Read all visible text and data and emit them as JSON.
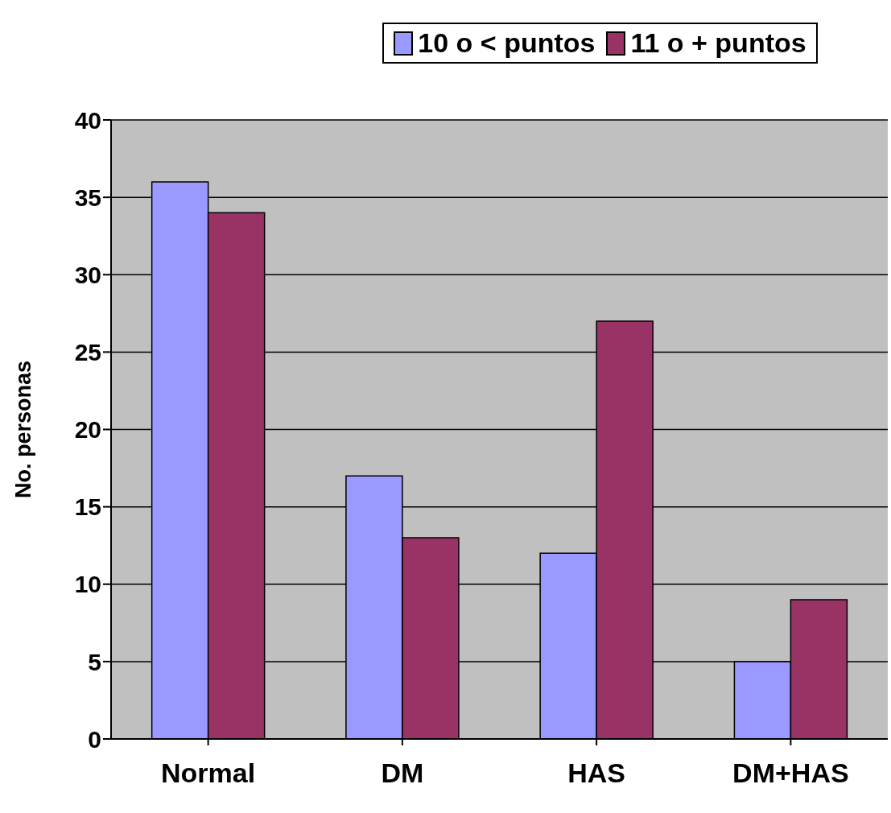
{
  "chart_data": {
    "type": "bar",
    "ylabel": "No. personas",
    "categories": [
      "Normal",
      "DM",
      "HAS",
      "DM+HAS"
    ],
    "series": [
      {
        "name": "10 o < puntos",
        "color": "#9999ff",
        "values": [
          36,
          17,
          12,
          5
        ]
      },
      {
        "name": "11 o + puntos",
        "color": "#993366",
        "values": [
          34,
          13,
          27,
          9
        ]
      }
    ],
    "ylim": [
      0,
      40
    ],
    "yticks": [
      0,
      5,
      10,
      15,
      20,
      25,
      30,
      35,
      40
    ],
    "grid": "y",
    "legend": "top"
  }
}
